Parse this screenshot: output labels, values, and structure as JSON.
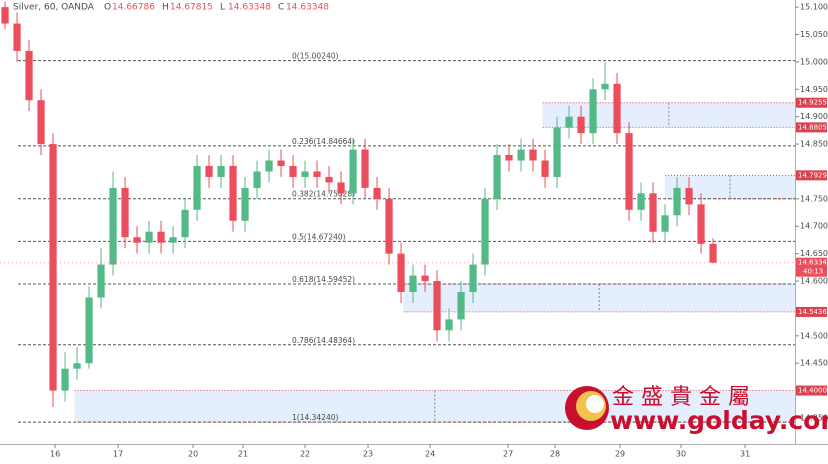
{
  "header": {
    "symbol": "Silver, 60, OANDA",
    "ohlc": [
      {
        "label": "O",
        "value": 14.66786
      },
      {
        "label": "H",
        "value": 14.67815
      },
      {
        "label": "L",
        "value": 14.63348
      },
      {
        "label": "C",
        "value": 14.63348
      }
    ]
  },
  "watermark": {
    "brand": "金 盛 貴 金 屬",
    "url": "www.golday.com"
  },
  "chart_data": {
    "type": "candlestick",
    "up_color": "#53b987",
    "down_color": "#eb4d5c",
    "open": [
      15.1,
      15.07,
      15.02,
      14.93,
      14.85,
      14.4,
      14.44,
      14.45,
      14.57,
      14.63,
      14.77,
      14.68,
      14.67,
      14.69,
      14.67,
      14.68,
      14.73,
      14.81,
      14.79,
      14.81,
      14.71,
      14.77,
      14.8,
      14.82,
      14.81,
      14.79,
      14.8,
      14.79,
      14.78,
      14.76,
      14.84,
      14.77,
      14.75,
      14.65,
      14.58,
      14.61,
      14.6,
      14.51,
      14.53,
      14.58,
      14.63,
      14.75,
      14.83,
      14.82,
      14.84,
      14.82,
      14.79,
      14.88,
      14.9,
      14.87,
      14.95,
      14.96,
      14.87,
      14.73,
      14.76,
      14.69,
      14.72,
      14.77,
      14.74,
      14.66786
    ],
    "high": [
      15.11,
      15.09,
      15.04,
      14.95,
      14.87,
      14.47,
      14.48,
      14.59,
      14.66,
      14.8,
      14.79,
      14.7,
      14.71,
      14.71,
      14.7,
      14.75,
      14.83,
      14.83,
      14.83,
      14.83,
      14.79,
      14.82,
      14.84,
      14.84,
      14.83,
      14.82,
      14.82,
      14.81,
      14.8,
      14.86,
      14.86,
      14.79,
      14.77,
      14.67,
      14.63,
      14.63,
      14.62,
      14.55,
      14.6,
      14.65,
      14.77,
      14.85,
      14.85,
      14.86,
      14.86,
      14.84,
      14.9,
      14.92,
      14.92,
      14.97,
      15.0,
      14.98,
      14.89,
      14.78,
      14.78,
      14.74,
      14.79,
      14.79,
      14.76,
      14.67815
    ],
    "low": [
      15.06,
      15.0,
      14.91,
      14.83,
      14.37,
      14.38,
      14.42,
      14.44,
      14.55,
      14.61,
      14.66,
      14.65,
      14.65,
      14.65,
      14.65,
      14.66,
      14.71,
      14.77,
      14.77,
      14.69,
      14.69,
      14.75,
      14.78,
      14.79,
      14.77,
      14.77,
      14.77,
      14.76,
      14.74,
      14.74,
      14.75,
      14.73,
      14.63,
      14.56,
      14.56,
      14.58,
      14.49,
      14.49,
      14.51,
      14.56,
      14.61,
      14.73,
      14.8,
      14.8,
      14.8,
      14.77,
      14.77,
      14.86,
      14.85,
      14.85,
      14.93,
      14.85,
      14.71,
      14.71,
      14.67,
      14.67,
      14.7,
      14.72,
      14.65,
      14.63348
    ],
    "close": [
      15.07,
      15.02,
      14.93,
      14.85,
      14.4,
      14.44,
      14.45,
      14.57,
      14.63,
      14.77,
      14.68,
      14.67,
      14.69,
      14.67,
      14.68,
      14.73,
      14.81,
      14.79,
      14.81,
      14.71,
      14.77,
      14.8,
      14.82,
      14.81,
      14.79,
      14.8,
      14.79,
      14.78,
      14.76,
      14.84,
      14.77,
      14.75,
      14.65,
      14.58,
      14.61,
      14.6,
      14.51,
      14.53,
      14.58,
      14.63,
      14.75,
      14.83,
      14.82,
      14.84,
      14.82,
      14.79,
      14.88,
      14.9,
      14.87,
      14.95,
      14.96,
      14.87,
      14.73,
      14.76,
      14.69,
      14.72,
      14.77,
      14.74,
      14.66786,
      14.63348
    ],
    "xlim": [
      -0.42,
      65.83
    ],
    "xticks": [
      {
        "value": 4.17,
        "label": "16"
      },
      {
        "value": 9.42,
        "label": "17"
      },
      {
        "value": 15.67,
        "label": "20"
      },
      {
        "value": 19.83,
        "label": "21"
      },
      {
        "value": 25,
        "label": "22"
      },
      {
        "value": 30.25,
        "label": "23"
      },
      {
        "value": 35.42,
        "label": "24"
      },
      {
        "value": 41.92,
        "label": "27"
      },
      {
        "value": 45.83,
        "label": "28"
      },
      {
        "value": 51.25,
        "label": "29"
      },
      {
        "value": 56.33,
        "label": "30"
      },
      {
        "value": 61.67,
        "label": "31"
      }
    ],
    "ylim": [
      14.266,
      15.113
    ],
    "yticks": [
      {
        "value": 15.1,
        "label": "15.10000"
      },
      {
        "value": 15.05,
        "label": "15.05000"
      },
      {
        "value": 15.0,
        "label": "15.00000"
      },
      {
        "value": 14.95,
        "label": "14.95000"
      },
      {
        "value": 14.9,
        "label": "14.90000"
      },
      {
        "value": 14.85,
        "label": "14.85000"
      },
      {
        "value": 14.75,
        "label": "14.75000"
      },
      {
        "value": 14.7,
        "label": "14.70000"
      },
      {
        "value": 14.65,
        "label": "14.65000"
      },
      {
        "value": 14.6,
        "label": "14.60000"
      },
      {
        "value": 14.5,
        "label": "14.50000"
      },
      {
        "value": 14.45,
        "label": "14.45000"
      },
      {
        "value": 14.35,
        "label": "14.35000"
      }
    ],
    "fib_levels": [
      {
        "value": 15.0024,
        "label": "0(15.00240)"
      },
      {
        "value": 14.84664,
        "label": "0.236(14.84664)"
      },
      {
        "value": 14.75028,
        "label": "0.382(14.75028)"
      },
      {
        "value": 14.6724,
        "label": "0.5(14.67240)"
      },
      {
        "value": 14.59452,
        "label": "0.618(14.59452)"
      },
      {
        "value": 14.48364,
        "label": "0.786(14.48364)"
      },
      {
        "value": 14.3424,
        "label": "1(14.34240)"
      }
    ],
    "zones": [
      {
        "from": 44.8,
        "top": 14.9255,
        "bottom": 14.8805
      },
      {
        "from": 55,
        "top": 14.79294,
        "bottom": 14.75028
      },
      {
        "from": 33.2,
        "top": 14.59452,
        "bottom": 14.54361
      },
      {
        "from": 5.8,
        "top": 14.40009,
        "bottom": 14.3424
      }
    ],
    "price_tags": [
      {
        "value": 14.9255,
        "label": "14.92550"
      },
      {
        "value": 14.8805,
        "label": "14.88050"
      },
      {
        "value": 14.79294,
        "label": "14.79294"
      },
      {
        "value": 14.54361,
        "label": "14.54361"
      },
      {
        "value": 14.40009,
        "label": "14.40009"
      }
    ],
    "last_price": {
      "value": 14.63348,
      "label": "14.63348",
      "countdown": "40:13"
    }
  }
}
